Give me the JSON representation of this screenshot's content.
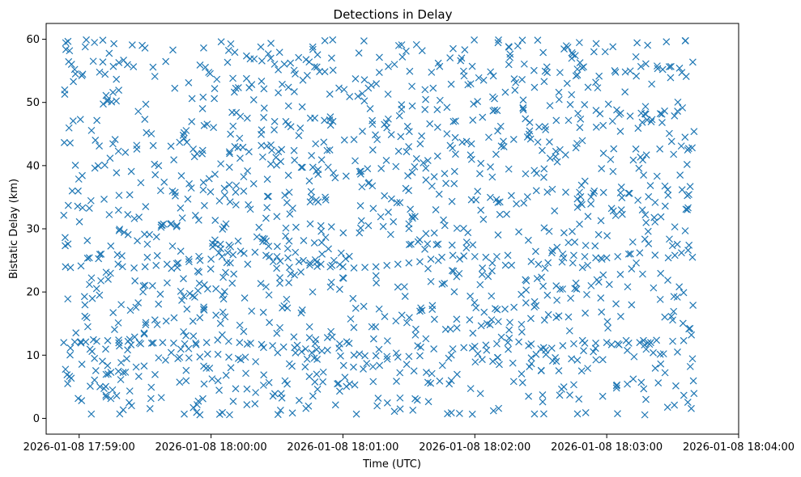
{
  "chart_data": {
    "type": "scatter",
    "title": "Detections in Delay",
    "xlabel": "Time (UTC)",
    "ylabel": "Bistatic Delay (km)",
    "marker": "x",
    "color": "#1f77b4",
    "grid": false,
    "xlim": [
      "2026-01-08 17:58:45",
      "2026-01-08 18:04:00"
    ],
    "ylim": [
      -2.5,
      62.5
    ],
    "xticks": [
      "2026-01-08 17:59:00",
      "2026-01-08 18:00:00",
      "2026-01-08 18:01:00",
      "2026-01-08 18:02:00",
      "2026-01-08 18:03:00",
      "2026-01-08 18:04:00"
    ],
    "yticks": [
      0,
      10,
      20,
      30,
      40,
      50,
      60
    ],
    "time_range": [
      "2026-01-08 17:58:53",
      "2026-01-08 18:03:40"
    ],
    "series": [
      {
        "points": [
          [
            "17:58:53",
            12.0
          ],
          [
            "17:58:58",
            12.1
          ],
          [
            "17:59:03",
            12.1
          ],
          [
            "17:59:08",
            12.2
          ],
          [
            "17:59:13",
            12.3
          ],
          [
            "17:59:18",
            12.4
          ],
          [
            "17:59:23",
            12.5
          ],
          [
            "17:59:28",
            11.8
          ],
          [
            "17:59:33",
            11.9
          ],
          [
            "17:59:38",
            12.0
          ],
          [
            "17:59:43",
            11.9
          ],
          [
            "17:59:48",
            11.8
          ],
          [
            "17:59:53",
            11.9
          ],
          [
            "17:59:58",
            12.0
          ],
          [
            "18:00:03",
            12.4
          ],
          [
            "18:00:08",
            12.2
          ],
          [
            "18:00:13",
            12.0
          ],
          [
            "18:00:18",
            11.9
          ],
          [
            "18:00:23",
            11.7
          ],
          [
            "18:00:28",
            11.5
          ],
          [
            "18:00:33",
            11.3
          ],
          [
            "18:00:38",
            11.2
          ],
          [
            "18:00:43",
            11.0
          ],
          [
            "18:00:48",
            10.9
          ],
          [
            "18:00:53",
            10.8
          ],
          [
            "18:01:05",
            10.0
          ],
          [
            "18:01:10",
            9.9
          ],
          [
            "18:01:15",
            9.9
          ],
          [
            "18:01:20",
            9.8
          ],
          [
            "18:01:25",
            9.7
          ],
          [
            "18:01:30",
            9.8
          ],
          [
            "18:01:35",
            9.9
          ],
          [
            "18:01:50",
            11.0
          ],
          [
            "18:01:55",
            11.2
          ],
          [
            "18:02:00",
            11.4
          ],
          [
            "18:02:05",
            11.6
          ],
          [
            "18:02:10",
            11.8
          ],
          [
            "18:02:15",
            12.0
          ],
          [
            "18:02:20",
            12.1
          ],
          [
            "18:02:30",
            11.0
          ],
          [
            "18:02:35",
            11.1
          ],
          [
            "18:02:40",
            11.5
          ],
          [
            "18:02:45",
            11.8
          ],
          [
            "18:02:50",
            11.9
          ],
          [
            "18:02:55",
            11.9
          ],
          [
            "18:03:00",
            12.0
          ],
          [
            "18:03:05",
            11.8
          ],
          [
            "18:03:10",
            11.9
          ],
          [
            "18:03:15",
            12.0
          ],
          [
            "18:03:20",
            12.0
          ],
          [
            "18:03:30",
            12.2
          ],
          [
            "18:03:35",
            12.3
          ],
          [
            "18:03:38",
            8.2
          ],
          [
            "17:59:25",
            23.8
          ],
          [
            "17:59:30",
            24.0
          ],
          [
            "17:59:35",
            24.2
          ],
          [
            "17:59:40",
            24.4
          ],
          [
            "17:59:45",
            24.6
          ],
          [
            "17:59:50",
            24.8
          ],
          [
            "17:59:55",
            25.0
          ],
          [
            "18:00:00",
            25.2
          ],
          [
            "18:00:05",
            25.6
          ],
          [
            "18:00:10",
            25.9
          ],
          [
            "18:00:15",
            26.1
          ],
          [
            "18:00:20",
            26.3
          ],
          [
            "18:00:25",
            25.8
          ],
          [
            "18:00:30",
            25.6
          ],
          [
            "18:00:35",
            25.4
          ],
          [
            "18:00:40",
            24.8
          ],
          [
            "18:00:45",
            24.6
          ],
          [
            "18:00:50",
            24.4
          ],
          [
            "18:00:55",
            24.2
          ],
          [
            "18:01:00",
            24.0
          ],
          [
            "18:01:05",
            23.8
          ],
          [
            "18:01:10",
            23.9
          ],
          [
            "18:01:15",
            24.0
          ],
          [
            "18:01:20",
            24.2
          ],
          [
            "18:01:25",
            24.4
          ],
          [
            "18:01:30",
            24.6
          ],
          [
            "18:01:35",
            24.8
          ],
          [
            "18:01:40",
            25.2
          ],
          [
            "18:01:45",
            25.5
          ],
          [
            "18:01:50",
            25.8
          ],
          [
            "18:01:55",
            25.7
          ],
          [
            "18:02:00",
            25.6
          ],
          [
            "18:02:05",
            25.5
          ],
          [
            "18:02:10",
            25.6
          ],
          [
            "18:02:15",
            25.8
          ],
          [
            "18:02:35",
            26.2
          ],
          [
            "18:02:40",
            26.0
          ],
          [
            "18:02:45",
            25.8
          ],
          [
            "18:02:50",
            25.6
          ],
          [
            "18:02:55",
            25.4
          ],
          [
            "18:03:00",
            25.4
          ],
          [
            "18:03:05",
            25.6
          ],
          [
            "18:03:10",
            26.0
          ],
          [
            "18:03:15",
            26.2
          ],
          [
            "18:03:28",
            25.4
          ],
          [
            "18:03:31",
            25.8
          ],
          [
            "18:03:34",
            26.2
          ],
          [
            "18:03:37",
            26.6
          ],
          [
            "18:03:39",
            25.5
          ]
        ]
      }
    ]
  }
}
